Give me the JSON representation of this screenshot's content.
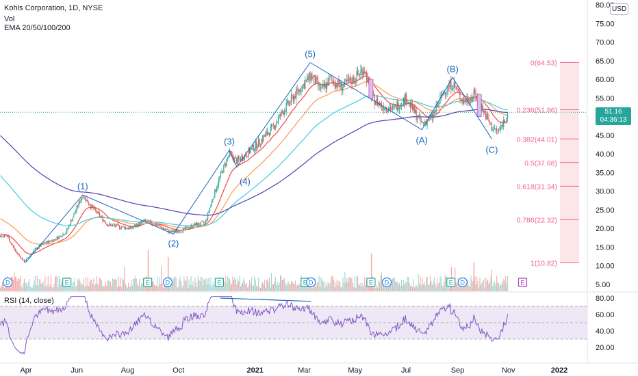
{
  "header": {
    "title": "Kohls Corporation, 1D, NYSE",
    "volume_label": "Vol",
    "ema_label": "EMA 20/50/100/200",
    "currency_button": "USD"
  },
  "last_price": {
    "value": "51.16",
    "countdown": "04:36:13",
    "color": "#26a69a"
  },
  "rsi_panel": {
    "label": "RSI (14, close)"
  },
  "colors": {
    "up": "#26a69a",
    "down": "#ef5350",
    "ema20": "#ef5350",
    "ema50": "#f7a35c",
    "ema100": "#4dd0e1",
    "ema200": "#5b4bb3",
    "wave": "#1565c0",
    "fib": "#f06292",
    "rsi": "#7e57c2"
  },
  "chart_data": {
    "type": "candlestick",
    "title": "Kohls Corporation, 1D, NYSE",
    "indicators": [
      "Vol",
      "EMA 20/50/100/200",
      "RSI (14, close)"
    ],
    "x_tick_labels": [
      "Apr",
      "Jun",
      "Aug",
      "Oct",
      "2021",
      "Mar",
      "May",
      "Jul",
      "Sep",
      "Nov",
      "2022"
    ],
    "price_axis_labels": [
      "80.00",
      "75.00",
      "70.00",
      "65.00",
      "60.00",
      "55.00",
      "50.00",
      "45.00",
      "40.00",
      "35.00",
      "30.00",
      "25.00",
      "20.00",
      "15.00",
      "10.00",
      "5.00"
    ],
    "rsi_axis_labels": [
      "80.00",
      "60.00",
      "40.00",
      "20.00"
    ],
    "rsi_bands": [
      30,
      50,
      70
    ],
    "ylim": [
      3,
      80.5
    ],
    "rsi_ylim": [
      8,
      85
    ],
    "price_path": [
      [
        "2020-03-09",
        18
      ],
      [
        "2020-03-19",
        14
      ],
      [
        "2020-03-30",
        11
      ],
      [
        "2020-04-10",
        14
      ],
      [
        "2020-04-22",
        16
      ],
      [
        "2020-05-05",
        17
      ],
      [
        "2020-05-19",
        19
      ],
      [
        "2020-06-08",
        29
      ],
      [
        "2020-06-18",
        26
      ],
      [
        "2020-07-08",
        21
      ],
      [
        "2020-07-22",
        20.5
      ],
      [
        "2020-08-05",
        20
      ],
      [
        "2020-08-21",
        22
      ],
      [
        "2020-09-04",
        21
      ],
      [
        "2020-09-21",
        19
      ],
      [
        "2020-10-05",
        19.5
      ],
      [
        "2020-10-20",
        21
      ],
      [
        "2020-11-02",
        21.5
      ],
      [
        "2020-11-11",
        28
      ],
      [
        "2020-11-20",
        34
      ],
      [
        "2020-12-01",
        40
      ],
      [
        "2020-12-10",
        38
      ],
      [
        "2020-12-22",
        40
      ],
      [
        "2021-01-05",
        43
      ],
      [
        "2021-01-22",
        47
      ],
      [
        "2021-02-05",
        52
      ],
      [
        "2021-02-22",
        57
      ],
      [
        "2021-03-09",
        61
      ],
      [
        "2021-03-22",
        57
      ],
      [
        "2021-04-01",
        60
      ],
      [
        "2021-04-15",
        58
      ],
      [
        "2021-04-29",
        60
      ],
      [
        "2021-05-12",
        63
      ],
      [
        "2021-05-21",
        55
      ],
      [
        "2021-06-02",
        53
      ],
      [
        "2021-06-16",
        52
      ],
      [
        "2021-07-01",
        55
      ],
      [
        "2021-07-09",
        52
      ],
      [
        "2021-07-20",
        48
      ],
      [
        "2021-08-02",
        50
      ],
      [
        "2021-08-16",
        57
      ],
      [
        "2021-08-26",
        59
      ],
      [
        "2021-09-08",
        54
      ],
      [
        "2021-09-22",
        56
      ],
      [
        "2021-10-01",
        52
      ],
      [
        "2021-10-12",
        47
      ],
      [
        "2021-10-20",
        46
      ],
      [
        "2021-11-01",
        51.16
      ]
    ],
    "ema_periods": [
      20,
      50,
      100,
      200
    ],
    "elliott_waves": [
      {
        "label": "(1)",
        "date": "2020-06-08",
        "price": 29
      },
      {
        "label": "(2)",
        "date": "2020-09-25",
        "price": 18.5
      },
      {
        "label": "(3)",
        "date": "2020-12-01",
        "price": 41
      },
      {
        "label": "(4)",
        "date": "2020-12-10",
        "price": 36.5
      },
      {
        "label": "(5)",
        "date": "2021-03-08",
        "price": 64.5
      },
      {
        "label": "(A)",
        "date": "2021-07-20",
        "price": 46.5
      },
      {
        "label": "(B)",
        "date": "2021-08-26",
        "price": 60.5
      },
      {
        "label": "(C)",
        "date": "2021-10-12",
        "price": 44
      }
    ],
    "fib_levels": [
      {
        "label": "0(64.53)",
        "value": 64.53
      },
      {
        "label": "0.236(51.86)",
        "value": 51.86
      },
      {
        "label": "0.382(44.01)",
        "value": 44.01
      },
      {
        "label": "0.5(37.68)",
        "value": 37.68
      },
      {
        "label": "0.618(31.34)",
        "value": 31.34
      },
      {
        "label": "0.786(22.32)",
        "value": 22.32
      },
      {
        "label": "1(10.82)",
        "value": 10.82
      }
    ],
    "events": [
      {
        "type": "D",
        "date": "2020-03-10"
      },
      {
        "type": "E",
        "date": "2020-05-20"
      },
      {
        "type": "E",
        "date": "2020-08-25"
      },
      {
        "type": "D",
        "date": "2020-09-18"
      },
      {
        "type": "E",
        "date": "2020-11-19"
      },
      {
        "type": "E",
        "date": "2021-03-02"
      },
      {
        "type": "D",
        "date": "2021-03-09"
      },
      {
        "type": "E",
        "date": "2021-05-20"
      },
      {
        "type": "D",
        "date": "2021-06-08"
      },
      {
        "type": "E",
        "date": "2021-08-24"
      },
      {
        "type": "D",
        "date": "2021-09-07"
      },
      {
        "type": "E",
        "date": "2021-11-18"
      }
    ],
    "rsi_divergence": [
      [
        "2020-11-20",
        80
      ],
      [
        "2021-03-09",
        76
      ]
    ]
  }
}
